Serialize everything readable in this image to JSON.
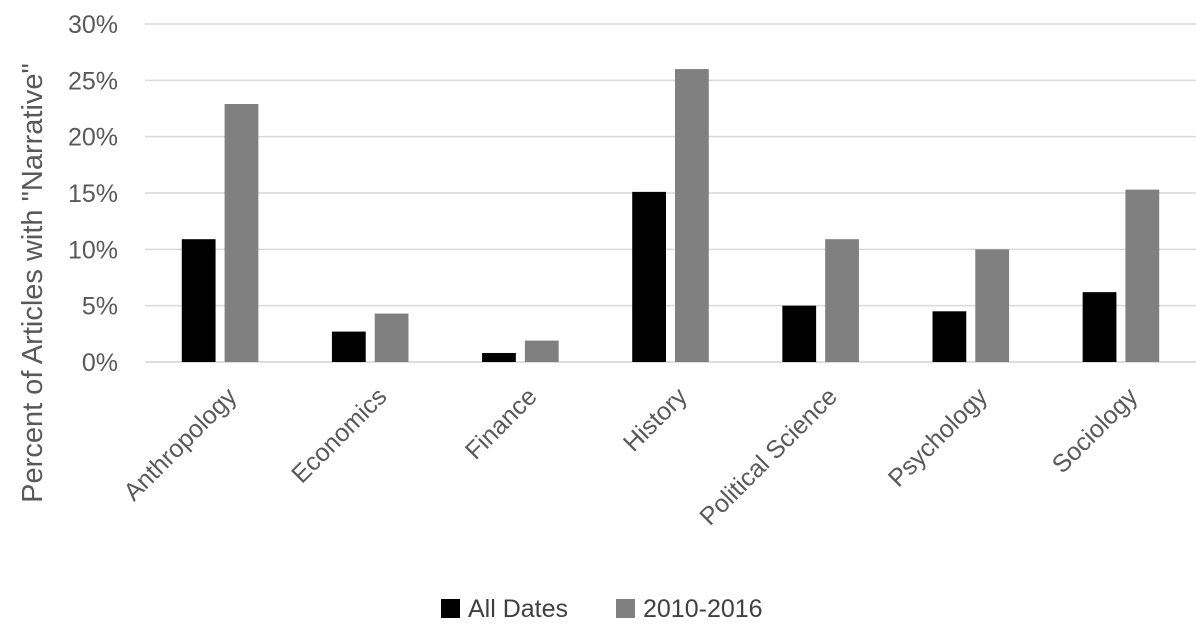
{
  "chart_data": {
    "type": "bar",
    "title": "",
    "xlabel": "",
    "ylabel": "Percent of Articles with \"Narrative\"",
    "categories": [
      "Anthropology",
      "Economics",
      "Finance",
      "History",
      "Political Science",
      "Psychology",
      "Sociology"
    ],
    "series": [
      {
        "name": "All Dates",
        "color": "#000000",
        "values": [
          10.9,
          2.7,
          0.8,
          15.1,
          5.0,
          4.5,
          6.2
        ]
      },
      {
        "name": "2010-2016",
        "color": "#808080",
        "values": [
          22.9,
          4.3,
          1.9,
          26.0,
          10.9,
          10.0,
          15.3
        ]
      }
    ],
    "ylim": [
      0,
      30
    ],
    "yticks": [
      0,
      5,
      10,
      15,
      20,
      25,
      30
    ],
    "ytick_labels": [
      "0%",
      "5%",
      "10%",
      "15%",
      "20%",
      "25%",
      "30%"
    ],
    "grid": true,
    "legend_position": "bottom"
  }
}
